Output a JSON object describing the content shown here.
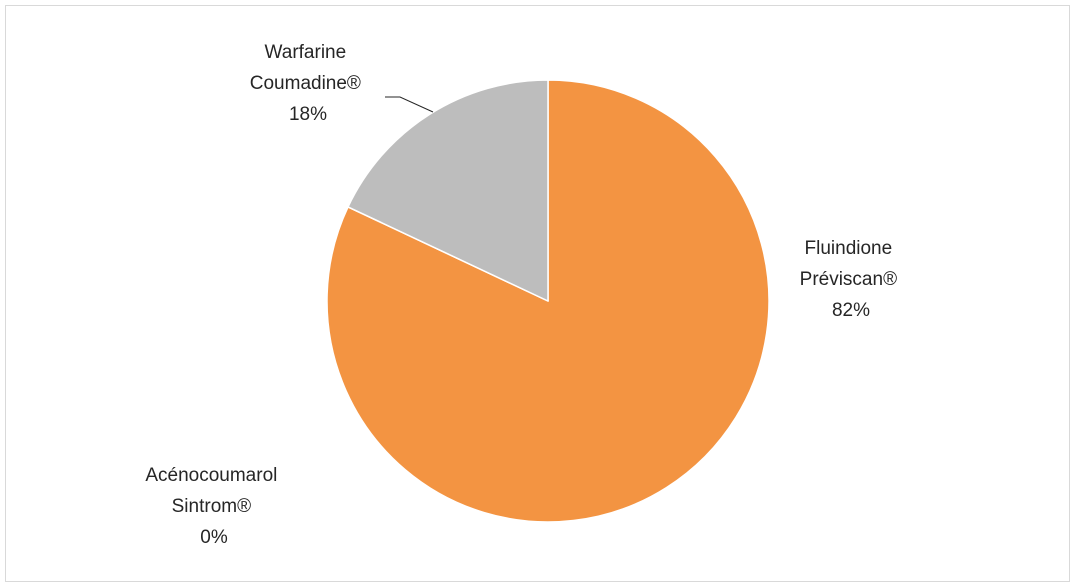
{
  "chart_data": {
    "type": "pie",
    "title": "",
    "start_angle_deg": 0,
    "direction": "clockwise",
    "slices": [
      {
        "name_line1": "Fluindione",
        "name_line2": "Préviscan®",
        "value": 82,
        "value_label": "82%",
        "color": "#F39442"
      },
      {
        "name_line1": "Acénocoumarol",
        "name_line2": "Sintrom®",
        "value": 0,
        "value_label": "0%",
        "color": "#5B9BD5"
      },
      {
        "name_line1": "Warfarine",
        "name_line2": "Coumadine®",
        "value": 18,
        "value_label": "18%",
        "color": "#BDBDBD"
      }
    ],
    "slice_border_color": "#ffffff",
    "legend": "none",
    "data_labels": "outside-category-and-percent"
  }
}
